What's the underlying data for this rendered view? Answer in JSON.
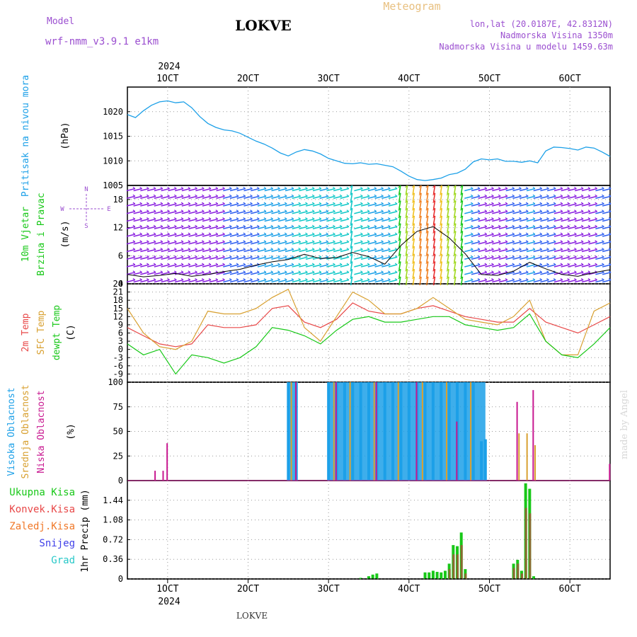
{
  "header": {
    "model_label": "Model",
    "model_name": "wrf-nmm_v3.9.1  e1km",
    "station": "LOKVE",
    "title": "Meteogram",
    "coords": "lon,lat (20.0187E, 42.8312N)",
    "altitude": "Nadmorska Visina 1350m",
    "model_altitude": "Nadmorska Visina u modelu 1459.63m"
  },
  "footer": {
    "station": "LOKVE",
    "watermark": "made by Angel"
  },
  "time_axis": {
    "year": "2024",
    "ticks": [
      "1OCT",
      "2OCT",
      "3OCT",
      "4OCT",
      "5OCT",
      "6OCT"
    ],
    "start": "OCT 0.5",
    "end": "OCT 6.5"
  },
  "panels": {
    "pressure": {
      "ylabel": "Pritisak na nivou mora",
      "unit": "(hPa)",
      "color": "#1ca0e8"
    },
    "wind": {
      "ylabel1": "10m Vjetar",
      "ylabel2": "Brzina i Pravac",
      "unit": "(m/s)",
      "compass": {
        "n": "N",
        "s": "S",
        "e": "E",
        "w": "W"
      }
    },
    "temp": {
      "label_2m": "2m Temp",
      "label_sfc": "SFC Temp",
      "label_dew": "dewpt Temp",
      "unit": "(C)",
      "colors": {
        "t2m": "#e84848",
        "sfc": "#d8a030",
        "dew": "#18c818"
      }
    },
    "cloud": {
      "label_high": "Visoka Oblacnost",
      "label_mid": "Srednja Oblacnost",
      "label_low": "Niska Oblacnost",
      "unit": "(%)",
      "colors": {
        "high": "#1ca0e8",
        "mid": "#d8a030",
        "low": "#c81890"
      }
    },
    "precip": {
      "ylabel": "1hr Precip (mm)",
      "legend": [
        "Ukupna Kisa",
        "Konvek.Kisa",
        "Zaledj.Kisa",
        "Snijeg",
        "Grad"
      ],
      "colors": [
        "#18c818",
        "#e84848",
        "#f07828",
        "#4040e8",
        "#28c8c8"
      ]
    }
  },
  "chart_data": [
    {
      "type": "line",
      "title": "Pritisak na nivou mora",
      "ylabel": "(hPa)",
      "ylim": [
        1005,
        1025
      ],
      "yticks": [
        1005,
        1010,
        1015,
        1020
      ],
      "x": [
        0.5,
        0.6,
        0.7,
        0.8,
        0.9,
        1.0,
        1.1,
        1.2,
        1.3,
        1.4,
        1.5,
        1.6,
        1.7,
        1.8,
        1.9,
        2.0,
        2.1,
        2.2,
        2.3,
        2.4,
        2.5,
        2.6,
        2.7,
        2.8,
        2.9,
        3.0,
        3.1,
        3.2,
        3.3,
        3.4,
        3.5,
        3.6,
        3.7,
        3.8,
        3.9,
        4.0,
        4.1,
        4.2,
        4.3,
        4.4,
        4.5,
        4.6,
        4.7,
        4.8,
        4.9,
        5.0,
        5.1,
        5.2,
        5.3,
        5.4,
        5.5,
        5.6,
        5.7,
        5.8,
        5.9,
        6.0,
        6.1,
        6.2,
        6.3,
        6.4,
        6.5
      ],
      "series": [
        {
          "values": [
            1019.4,
            1018.8,
            1020.2,
            1021.3,
            1022.0,
            1022.2,
            1021.8,
            1022.0,
            1020.8,
            1019.0,
            1017.6,
            1016.8,
            1016.3,
            1016.1,
            1015.6,
            1014.8,
            1014.0,
            1013.4,
            1012.6,
            1011.6,
            1011.0,
            1011.8,
            1012.3,
            1012.0,
            1011.4,
            1010.5,
            1010.0,
            1009.5,
            1009.4,
            1009.6,
            1009.3,
            1009.4,
            1009.1,
            1008.8,
            1007.9,
            1006.9,
            1006.2,
            1006.0,
            1006.2,
            1006.5,
            1007.2,
            1007.5,
            1008.3,
            1009.8,
            1010.4,
            1010.2,
            1010.4,
            1009.9,
            1009.9,
            1009.7,
            1010.0,
            1009.6,
            1012.0,
            1012.8,
            1012.7,
            1012.5,
            1012.2,
            1012.8,
            1012.6,
            1011.8,
            1010.9
          ]
        }
      ]
    },
    {
      "type": "line",
      "title": "10m Vjetar Brzina i Pravac",
      "ylabel": "(m/s)",
      "ylim": [
        0,
        21
      ],
      "yticks": [
        0,
        6,
        12,
        18
      ],
      "x": [
        0.5,
        0.7,
        0.9,
        1.1,
        1.3,
        1.5,
        1.7,
        1.9,
        2.1,
        2.3,
        2.5,
        2.7,
        2.9,
        3.1,
        3.3,
        3.5,
        3.7,
        3.9,
        4.1,
        4.3,
        4.5,
        4.7,
        4.9,
        5.1,
        5.3,
        5.5,
        5.7,
        5.9,
        6.1,
        6.3,
        6.5
      ],
      "series": [
        {
          "values": [
            2.0,
            1.5,
            1.8,
            2.2,
            1.6,
            2.0,
            2.6,
            3.1,
            4.0,
            4.7,
            5.2,
            6.3,
            5.4,
            5.6,
            6.7,
            5.8,
            4.2,
            8.2,
            11.2,
            12.2,
            9.8,
            6.4,
            2.0,
            1.8,
            2.7,
            4.6,
            3.2,
            2.0,
            1.6,
            2.4,
            3.0
          ]
        }
      ]
    },
    {
      "type": "line",
      "title": "2m Temp / SFC Temp / dewpt Temp",
      "ylabel": "(C)",
      "ylim": [
        -12,
        24
      ],
      "yticks": [
        -9,
        -6,
        -3,
        0,
        3,
        6,
        9,
        12,
        15,
        18,
        21,
        24
      ],
      "x": [
        0.5,
        0.7,
        0.9,
        1.1,
        1.3,
        1.5,
        1.7,
        1.9,
        2.1,
        2.3,
        2.5,
        2.7,
        2.9,
        3.1,
        3.3,
        3.5,
        3.7,
        3.9,
        4.1,
        4.3,
        4.5,
        4.7,
        4.9,
        5.1,
        5.3,
        5.5,
        5.7,
        5.9,
        6.1,
        6.3,
        6.5
      ],
      "series": [
        {
          "name": "2m Temp",
          "values": [
            8,
            5,
            2,
            1,
            2,
            9,
            8,
            8,
            9,
            15,
            16,
            10,
            8,
            11,
            17,
            14,
            13,
            13,
            15,
            16,
            14,
            12,
            11,
            10,
            10,
            15,
            10,
            8,
            6,
            9,
            12
          ]
        },
        {
          "name": "SFC Temp",
          "values": [
            15,
            6,
            1,
            0,
            3,
            14,
            13,
            13,
            15,
            19,
            22,
            8,
            3,
            12,
            21,
            18,
            13,
            13,
            15,
            19,
            15,
            11,
            10,
            9,
            12,
            18,
            3,
            -2,
            -2,
            14,
            17
          ]
        },
        {
          "name": "dewpt Temp",
          "values": [
            2,
            -2,
            0,
            -9,
            -2,
            -3,
            -5,
            -3,
            1,
            8,
            7,
            5,
            2,
            7,
            11,
            12,
            10,
            10,
            11,
            12,
            12,
            9,
            8,
            7,
            8,
            13,
            3,
            -2,
            -3,
            2,
            8
          ]
        }
      ]
    },
    {
      "type": "bar",
      "title": "Visoka / Srednja / Niska Oblacnost",
      "ylabel": "(%)",
      "ylim": [
        0,
        100
      ],
      "yticks": [
        0,
        25,
        50,
        75,
        100
      ],
      "note": "Solid cloud blocks at 100% between OCT 2.5-2.6 and OCT 3.0-4.95",
      "series": [
        {
          "name": "Visoka Oblacnost",
          "x": [
            2.5,
            2.6,
            3.0,
            3.1,
            3.2,
            3.3,
            3.4,
            3.5,
            3.6,
            3.7,
            3.8,
            3.9,
            4.0,
            4.1,
            4.2,
            4.3,
            4.4,
            4.5,
            4.6,
            4.7,
            4.8,
            4.9,
            4.95
          ],
          "values": [
            100,
            100,
            100,
            100,
            100,
            100,
            100,
            100,
            100,
            100,
            100,
            100,
            100,
            100,
            100,
            100,
            100,
            100,
            100,
            100,
            100,
            40,
            42
          ]
        },
        {
          "name": "Srednja Oblacnost",
          "x": [
            2.52,
            3.05,
            3.25,
            3.55,
            3.85,
            4.15,
            4.45,
            4.75,
            5.35,
            5.45,
            5.55
          ],
          "values": [
            100,
            100,
            100,
            100,
            100,
            100,
            100,
            100,
            48,
            48,
            36
          ]
        },
        {
          "name": "Niska Oblacnost",
          "x": [
            0.8,
            0.9,
            0.95,
            2.55,
            3.05,
            3.55,
            4.05,
            4.55,
            5.3,
            5.5,
            6.45
          ],
          "values": [
            10,
            10,
            38,
            100,
            100,
            100,
            100,
            60,
            80,
            92,
            17
          ]
        }
      ]
    },
    {
      "type": "bar",
      "title": "1hr Precip",
      "ylabel": "1hr Precip (mm)",
      "ylim": [
        0,
        1.8
      ],
      "yticks": [
        0,
        0.36,
        0.72,
        1.08,
        1.44
      ],
      "x": [
        3.4,
        3.5,
        3.55,
        3.6,
        4.2,
        4.25,
        4.3,
        4.35,
        4.4,
        4.45,
        4.5,
        4.55,
        4.6,
        4.65,
        4.7,
        5.3,
        5.35,
        5.4,
        5.45,
        5.5,
        5.55
      ],
      "series": [
        {
          "name": "Ukupna Kisa",
          "values": [
            0.02,
            0.05,
            0.08,
            0.1,
            0.12,
            0.12,
            0.15,
            0.13,
            0.12,
            0.15,
            0.28,
            0.62,
            0.6,
            0.85,
            0.18,
            0.28,
            0.35,
            0.15,
            1.75,
            1.65,
            0.05
          ]
        },
        {
          "name": "Konvek.Kisa",
          "values": [
            0,
            0,
            0,
            0,
            0,
            0,
            0,
            0,
            0,
            0,
            0.18,
            0.45,
            0.45,
            0.62,
            0.1,
            0.2,
            0.28,
            0.1,
            1.3,
            1.2,
            0
          ]
        }
      ]
    }
  ]
}
